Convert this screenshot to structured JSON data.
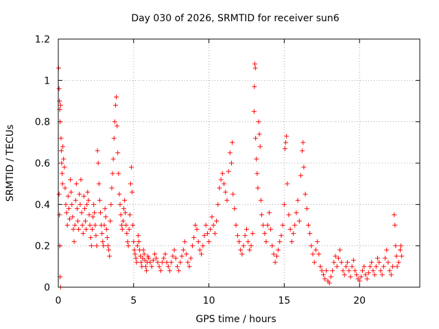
{
  "chart_data": {
    "type": "scatter",
    "title": "Day 030 of 2026, SRMTID for receiver sun6",
    "xlabel": "GPS time / hours",
    "ylabel": "SRMTID / TECUs",
    "xlim": [
      0,
      24
    ],
    "ylim": [
      0,
      1.2
    ],
    "x_ticks": [
      0,
      5,
      10,
      15,
      20
    ],
    "x_tick_labels": [
      "0",
      "5",
      "10",
      "15",
      "20"
    ],
    "y_ticks": [
      0,
      0.2,
      0.4,
      0.6,
      0.8,
      1,
      1.2
    ],
    "y_tick_labels": [
      "0",
      "0.2",
      "0.4",
      "0.6",
      "0.8",
      "1",
      "1.2"
    ],
    "grid": true,
    "marker": "plus",
    "marker_color": "#ff0000",
    "series": [
      {
        "name": "SRMTID",
        "points": [
          [
            0.02,
            1.06
          ],
          [
            0.05,
            0.96
          ],
          [
            0.08,
            0.9
          ],
          [
            0.1,
            0.86
          ],
          [
            0.12,
            0.8
          ],
          [
            0.15,
            0.88
          ],
          [
            0.18,
            0.72
          ],
          [
            0.2,
            0.66
          ],
          [
            0.22,
            0.6
          ],
          [
            0.25,
            0.55
          ],
          [
            0.28,
            0.5
          ],
          [
            0.05,
            0.45
          ],
          [
            0.08,
            0.35
          ],
          [
            0.1,
            0.2
          ],
          [
            0.12,
            0.05
          ],
          [
            0.15,
            0.0
          ],
          [
            0.3,
            0.68
          ],
          [
            0.35,
            0.62
          ],
          [
            0.4,
            0.58
          ],
          [
            0.45,
            0.48
          ],
          [
            0.5,
            0.4
          ],
          [
            0.55,
            0.36
          ],
          [
            0.6,
            0.3
          ],
          [
            0.65,
            0.44
          ],
          [
            0.7,
            0.38
          ],
          [
            0.75,
            0.33
          ],
          [
            0.8,
            0.52
          ],
          [
            0.85,
            0.46
          ],
          [
            0.9,
            0.4
          ],
          [
            0.95,
            0.34
          ],
          [
            1.0,
            0.28
          ],
          [
            1.05,
            0.22
          ],
          [
            1.1,
            0.3
          ],
          [
            1.15,
            0.42
          ],
          [
            1.2,
            0.5
          ],
          [
            1.25,
            0.38
          ],
          [
            1.3,
            0.32
          ],
          [
            1.35,
            0.28
          ],
          [
            1.4,
            0.45
          ],
          [
            1.45,
            0.4
          ],
          [
            1.5,
            0.52
          ],
          [
            1.55,
            0.36
          ],
          [
            1.6,
            0.3
          ],
          [
            1.65,
            0.26
          ],
          [
            1.7,
            0.44
          ],
          [
            1.75,
            0.38
          ],
          [
            1.8,
            0.32
          ],
          [
            1.85,
            0.28
          ],
          [
            1.9,
            0.4
          ],
          [
            1.95,
            0.46
          ],
          [
            2.0,
            0.42
          ],
          [
            2.05,
            0.35
          ],
          [
            2.1,
            0.3
          ],
          [
            2.15,
            0.24
          ],
          [
            2.2,
            0.2
          ],
          [
            2.25,
            0.28
          ],
          [
            2.3,
            0.34
          ],
          [
            2.35,
            0.4
          ],
          [
            2.4,
            0.36
          ],
          [
            2.45,
            0.3
          ],
          [
            2.5,
            0.25
          ],
          [
            2.55,
            0.2
          ],
          [
            2.6,
            0.66
          ],
          [
            2.65,
            0.6
          ],
          [
            2.7,
            0.5
          ],
          [
            2.75,
            0.42
          ],
          [
            2.8,
            0.36
          ],
          [
            2.85,
            0.3
          ],
          [
            2.9,
            0.26
          ],
          [
            2.95,
            0.22
          ],
          [
            3.0,
            0.2
          ],
          [
            3.05,
            0.3
          ],
          [
            3.1,
            0.38
          ],
          [
            3.15,
            0.34
          ],
          [
            3.2,
            0.28
          ],
          [
            3.25,
            0.24
          ],
          [
            3.3,
            0.2
          ],
          [
            3.35,
            0.18
          ],
          [
            3.4,
            0.15
          ],
          [
            3.45,
            0.32
          ],
          [
            3.5,
            0.4
          ],
          [
            3.55,
            0.48
          ],
          [
            3.6,
            0.55
          ],
          [
            3.65,
            0.62
          ],
          [
            3.7,
            0.72
          ],
          [
            3.75,
            0.8
          ],
          [
            3.8,
            0.88
          ],
          [
            3.85,
            0.92
          ],
          [
            3.9,
            0.78
          ],
          [
            3.95,
            0.65
          ],
          [
            4.0,
            0.55
          ],
          [
            4.05,
            0.45
          ],
          [
            4.1,
            0.4
          ],
          [
            4.15,
            0.35
          ],
          [
            4.2,
            0.3
          ],
          [
            4.25,
            0.28
          ],
          [
            4.3,
            0.32
          ],
          [
            4.35,
            0.38
          ],
          [
            4.4,
            0.42
          ],
          [
            4.45,
            0.36
          ],
          [
            4.5,
            0.3
          ],
          [
            4.55,
            0.26
          ],
          [
            4.6,
            0.22
          ],
          [
            4.65,
            0.2
          ],
          [
            4.7,
            0.28
          ],
          [
            4.75,
            0.35
          ],
          [
            4.8,
            0.5
          ],
          [
            4.85,
            0.58
          ],
          [
            4.9,
            0.46
          ],
          [
            4.95,
            0.3
          ],
          [
            5.0,
            0.22
          ],
          [
            5.05,
            0.18
          ],
          [
            5.1,
            0.16
          ],
          [
            5.15,
            0.14
          ],
          [
            5.2,
            0.12
          ],
          [
            5.25,
            0.2
          ],
          [
            5.3,
            0.25
          ],
          [
            5.35,
            0.22
          ],
          [
            5.4,
            0.18
          ],
          [
            5.45,
            0.15
          ],
          [
            5.5,
            0.12
          ],
          [
            5.55,
            0.1
          ],
          [
            5.6,
            0.14
          ],
          [
            5.65,
            0.18
          ],
          [
            5.7,
            0.16
          ],
          [
            5.75,
            0.13
          ],
          [
            5.8,
            0.1
          ],
          [
            5.85,
            0.08
          ],
          [
            5.9,
            0.12
          ],
          [
            5.95,
            0.15
          ],
          [
            6.0,
            0.14
          ],
          [
            6.1,
            0.12
          ],
          [
            6.2,
            0.1
          ],
          [
            6.3,
            0.13
          ],
          [
            6.4,
            0.16
          ],
          [
            6.5,
            0.14
          ],
          [
            6.6,
            0.12
          ],
          [
            6.7,
            0.1
          ],
          [
            6.8,
            0.08
          ],
          [
            6.9,
            0.12
          ],
          [
            7.0,
            0.14
          ],
          [
            7.1,
            0.16
          ],
          [
            7.2,
            0.12
          ],
          [
            7.3,
            0.1
          ],
          [
            7.4,
            0.08
          ],
          [
            7.5,
            0.12
          ],
          [
            7.6,
            0.15
          ],
          [
            7.7,
            0.18
          ],
          [
            7.8,
            0.14
          ],
          [
            7.9,
            0.1
          ],
          [
            8.0,
            0.08
          ],
          [
            8.1,
            0.12
          ],
          [
            8.2,
            0.15
          ],
          [
            8.3,
            0.18
          ],
          [
            8.4,
            0.22
          ],
          [
            8.5,
            0.16
          ],
          [
            8.6,
            0.12
          ],
          [
            8.7,
            0.1
          ],
          [
            8.8,
            0.14
          ],
          [
            8.9,
            0.2
          ],
          [
            9.0,
            0.24
          ],
          [
            9.1,
            0.3
          ],
          [
            9.2,
            0.28
          ],
          [
            9.3,
            0.22
          ],
          [
            9.4,
            0.18
          ],
          [
            9.5,
            0.16
          ],
          [
            9.6,
            0.2
          ],
          [
            9.7,
            0.25
          ],
          [
            9.8,
            0.3
          ],
          [
            9.9,
            0.26
          ],
          [
            10.0,
            0.22
          ],
          [
            10.1,
            0.28
          ],
          [
            10.2,
            0.34
          ],
          [
            10.3,
            0.3
          ],
          [
            10.4,
            0.26
          ],
          [
            10.5,
            0.32
          ],
          [
            10.6,
            0.4
          ],
          [
            10.7,
            0.48
          ],
          [
            10.8,
            0.52
          ],
          [
            10.9,
            0.55
          ],
          [
            11.0,
            0.5
          ],
          [
            11.1,
            0.46
          ],
          [
            11.2,
            0.42
          ],
          [
            11.3,
            0.56
          ],
          [
            11.4,
            0.65
          ],
          [
            11.5,
            0.6
          ],
          [
            11.55,
            0.7
          ],
          [
            11.6,
            0.45
          ],
          [
            11.7,
            0.38
          ],
          [
            11.8,
            0.3
          ],
          [
            11.9,
            0.25
          ],
          [
            12.0,
            0.22
          ],
          [
            12.1,
            0.18
          ],
          [
            12.2,
            0.16
          ],
          [
            12.3,
            0.2
          ],
          [
            12.4,
            0.25
          ],
          [
            12.5,
            0.28
          ],
          [
            12.6,
            0.22
          ],
          [
            12.7,
            0.18
          ],
          [
            12.8,
            0.2
          ],
          [
            12.9,
            0.26
          ],
          [
            13.0,
            0.85
          ],
          [
            13.02,
            0.97
          ],
          [
            13.05,
            1.08
          ],
          [
            13.08,
            1.06
          ],
          [
            13.1,
            0.72
          ],
          [
            13.15,
            0.62
          ],
          [
            13.2,
            0.55
          ],
          [
            13.25,
            0.48
          ],
          [
            13.3,
            0.8
          ],
          [
            13.35,
            0.74
          ],
          [
            13.4,
            0.68
          ],
          [
            13.45,
            0.42
          ],
          [
            13.5,
            0.35
          ],
          [
            13.6,
            0.3
          ],
          [
            13.7,
            0.26
          ],
          [
            13.8,
            0.22
          ],
          [
            13.9,
            0.3
          ],
          [
            14.0,
            0.36
          ],
          [
            14.1,
            0.28
          ],
          [
            14.2,
            0.2
          ],
          [
            14.3,
            0.16
          ],
          [
            14.4,
            0.12
          ],
          [
            14.5,
            0.15
          ],
          [
            14.6,
            0.18
          ],
          [
            14.7,
            0.22
          ],
          [
            14.8,
            0.25
          ],
          [
            14.9,
            0.3
          ],
          [
            15.0,
            0.4
          ],
          [
            15.05,
            0.67
          ],
          [
            15.1,
            0.7
          ],
          [
            15.15,
            0.73
          ],
          [
            15.2,
            0.5
          ],
          [
            15.3,
            0.35
          ],
          [
            15.4,
            0.28
          ],
          [
            15.5,
            0.22
          ],
          [
            15.6,
            0.26
          ],
          [
            15.7,
            0.3
          ],
          [
            15.8,
            0.36
          ],
          [
            15.9,
            0.42
          ],
          [
            16.0,
            0.32
          ],
          [
            16.1,
            0.54
          ],
          [
            16.2,
            0.66
          ],
          [
            16.25,
            0.7
          ],
          [
            16.3,
            0.58
          ],
          [
            16.4,
            0.45
          ],
          [
            16.5,
            0.38
          ],
          [
            16.6,
            0.3
          ],
          [
            16.7,
            0.26
          ],
          [
            16.8,
            0.2
          ],
          [
            16.9,
            0.16
          ],
          [
            17.0,
            0.12
          ],
          [
            17.1,
            0.18
          ],
          [
            17.2,
            0.22
          ],
          [
            17.3,
            0.16
          ],
          [
            17.4,
            0.1
          ],
          [
            17.5,
            0.08
          ],
          [
            17.6,
            0.06
          ],
          [
            17.7,
            0.04
          ],
          [
            17.8,
            0.08
          ],
          [
            17.9,
            0.03
          ],
          [
            18.0,
            0.02
          ],
          [
            18.1,
            0.05
          ],
          [
            18.2,
            0.08
          ],
          [
            18.3,
            0.12
          ],
          [
            18.4,
            0.15
          ],
          [
            18.5,
            0.1
          ],
          [
            18.6,
            0.14
          ],
          [
            18.7,
            0.18
          ],
          [
            18.8,
            0.12
          ],
          [
            18.9,
            0.08
          ],
          [
            19.0,
            0.06
          ],
          [
            19.1,
            0.1
          ],
          [
            19.2,
            0.12
          ],
          [
            19.3,
            0.08
          ],
          [
            19.4,
            0.05
          ],
          [
            19.5,
            0.1
          ],
          [
            19.6,
            0.13
          ],
          [
            19.7,
            0.08
          ],
          [
            19.8,
            0.06
          ],
          [
            19.9,
            0.04
          ],
          [
            20.0,
            0.03
          ],
          [
            20.1,
            0.05
          ],
          [
            20.2,
            0.08
          ],
          [
            20.3,
            0.1
          ],
          [
            20.4,
            0.06
          ],
          [
            20.5,
            0.04
          ],
          [
            20.6,
            0.07
          ],
          [
            20.7,
            0.1
          ],
          [
            20.8,
            0.12
          ],
          [
            20.9,
            0.08
          ],
          [
            21.0,
            0.06
          ],
          [
            21.1,
            0.1
          ],
          [
            21.2,
            0.14
          ],
          [
            21.3,
            0.12
          ],
          [
            21.4,
            0.08
          ],
          [
            21.5,
            0.06
          ],
          [
            21.6,
            0.1
          ],
          [
            21.7,
            0.14
          ],
          [
            21.8,
            0.18
          ],
          [
            21.9,
            0.12
          ],
          [
            22.0,
            0.08
          ],
          [
            22.1,
            0.06
          ],
          [
            22.2,
            0.1
          ],
          [
            22.3,
            0.35
          ],
          [
            22.35,
            0.3
          ],
          [
            22.4,
            0.2
          ],
          [
            22.45,
            0.15
          ],
          [
            22.5,
            0.1
          ],
          [
            22.6,
            0.12
          ],
          [
            22.7,
            0.18
          ],
          [
            22.75,
            0.2
          ],
          [
            22.8,
            0.15
          ]
        ]
      }
    ]
  }
}
